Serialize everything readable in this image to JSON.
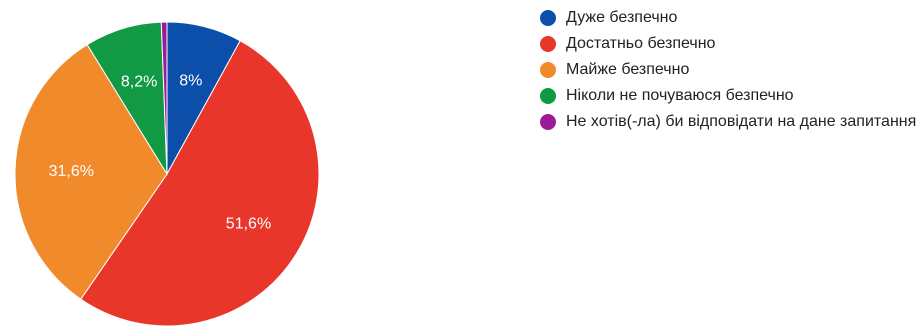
{
  "chart_data": {
    "type": "pie",
    "start_angle_deg": 90,
    "direction": "clockwise",
    "slices": [
      {
        "label": "Дуже безпечно",
        "value": 8,
        "value_label": "8%",
        "color": "#0b4faa"
      },
      {
        "label": "Достатньо безпечно",
        "value": 51.6,
        "value_label": "51,6%",
        "color": "#e8362b"
      },
      {
        "label": "Майже безпечно",
        "value": 31.6,
        "value_label": "31,6%",
        "color": "#f08a2b"
      },
      {
        "label": "Ніколи не почуваюся безпечно",
        "value": 8.2,
        "value_label": "8,2%",
        "color": "#119a43"
      },
      {
        "label": "Не хотів(-ла) би відповідати на дане запитання",
        "value": 0.6,
        "value_label": "",
        "color": "#9b1b9b"
      }
    ],
    "legend_position": "right"
  }
}
